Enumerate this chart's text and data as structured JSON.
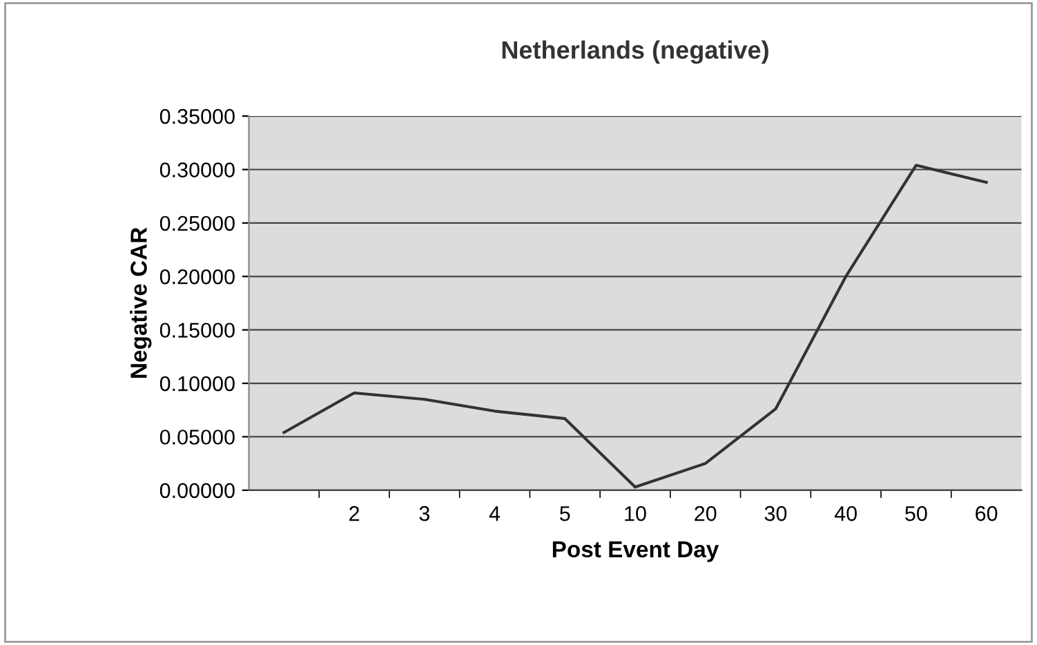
{
  "chart_data": {
    "type": "line",
    "title": "Netherlands (negative)",
    "xlabel": "Post Event Day",
    "ylabel": "Negative CAR",
    "categories": [
      null,
      "2",
      "3",
      "4",
      "5",
      "10",
      "20",
      "30",
      "40",
      "50",
      "60"
    ],
    "series": [
      {
        "color": "#333333",
        "values": [
          0.054,
          0.091,
          0.085,
          0.074,
          0.067,
          0.003,
          0.025,
          0.076,
          0.2,
          0.304,
          0.288
        ]
      }
    ],
    "ylim": [
      0,
      0.35
    ],
    "yticks": [
      {
        "value": 0,
        "label": "0.00000"
      },
      {
        "value": 0.05,
        "label": "0.05000"
      },
      {
        "value": 0.1,
        "label": "0.10000"
      },
      {
        "value": 0.15,
        "label": "0.15000"
      },
      {
        "value": 0.2,
        "label": "0.20000"
      },
      {
        "value": 0.25,
        "label": "0.25000"
      },
      {
        "value": 0.3,
        "label": "0.30000"
      },
      {
        "value": 0.35,
        "label": "0.35000"
      }
    ],
    "grid": "y",
    "marker": "none",
    "line_style": "solid",
    "legend": false
  }
}
